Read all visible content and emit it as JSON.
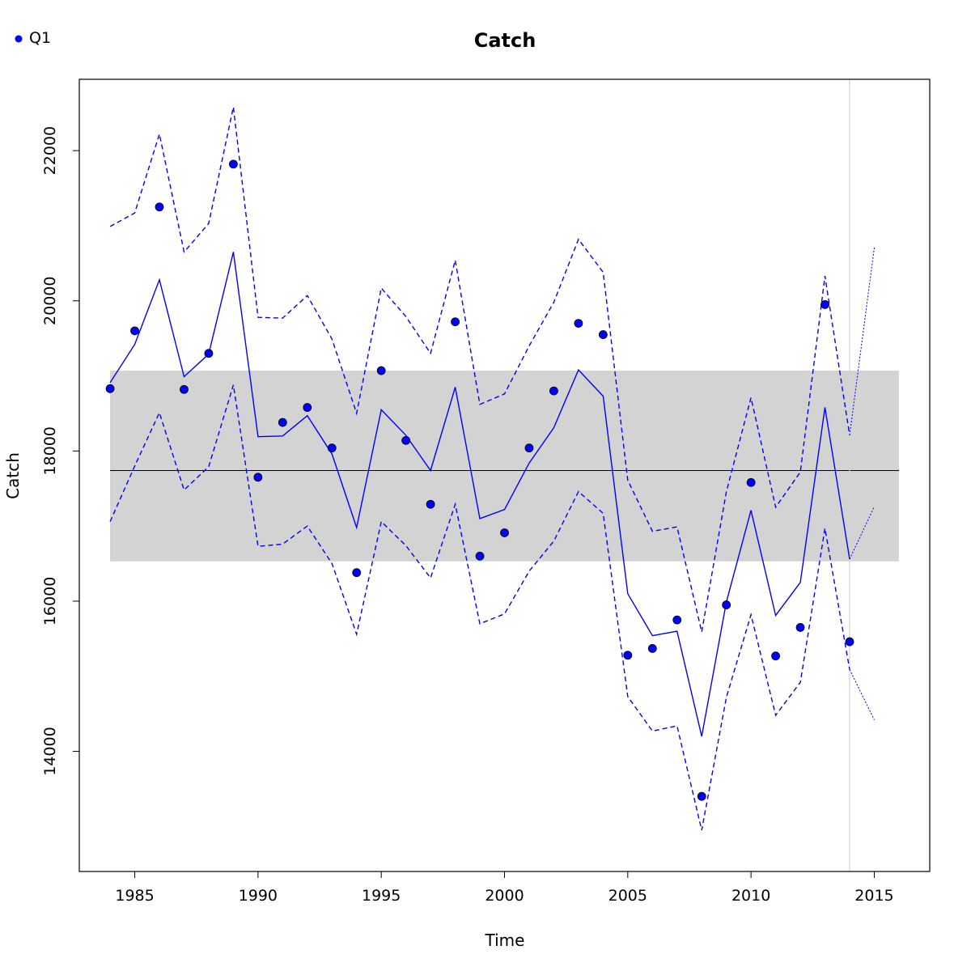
{
  "chart_data": {
    "type": "line",
    "title": "Catch",
    "xlabel": "Time",
    "ylabel": "Catch",
    "xlim": [
      1982.75,
      2017.25
    ],
    "ylim": [
      12400,
      22950
    ],
    "x_ticks": [
      1985,
      1990,
      1995,
      2000,
      2005,
      2010,
      2015
    ],
    "y_ticks": [
      14000,
      16000,
      18000,
      20000,
      22000
    ],
    "legend": {
      "position": "top-left",
      "entries": [
        {
          "label": "Q1",
          "color": "#0000ff",
          "marker": "point"
        }
      ]
    },
    "reference_band": {
      "x_range": [
        1984,
        2016
      ],
      "y_range": [
        16530,
        19070
      ],
      "color": "#d3d3d3"
    },
    "reference_line": {
      "x_range": [
        1984,
        2016
      ],
      "y": 17740,
      "color": "#000000"
    },
    "vertical_marker": {
      "x": 2014,
      "color": "#d3d3d3"
    },
    "colors": {
      "series": "#0000ff",
      "band": "#d3d3d3",
      "reference": "#000000",
      "frame": "#000000"
    },
    "series": [
      {
        "name": "observed",
        "style": "points",
        "x": [
          1984,
          1985,
          1986,
          1987,
          1988,
          1989,
          1990,
          1991,
          1992,
          1993,
          1994,
          1995,
          1996,
          1997,
          1998,
          1999,
          2000,
          2001,
          2002,
          2003,
          2004,
          2005,
          2006,
          2007,
          2008,
          2009,
          2010,
          2011,
          2012,
          2013,
          2014
        ],
        "y": [
          18830,
          19600,
          21250,
          18820,
          19300,
          21820,
          17650,
          18380,
          18580,
          18040,
          16380,
          19070,
          18140,
          17290,
          19720,
          16600,
          16910,
          18040,
          18800,
          19700,
          19550,
          15280,
          15370,
          15750,
          13400,
          15950,
          17580,
          15270,
          15650,
          19950,
          15460
        ]
      },
      {
        "name": "fitted",
        "style": "solid",
        "x": [
          1984,
          1985,
          1986,
          1987,
          1988,
          1989,
          1990,
          1991,
          1992,
          1993,
          1994,
          1995,
          1996,
          1997,
          1998,
          1999,
          2000,
          2001,
          2002,
          2003,
          2004,
          2005,
          2006,
          2007,
          2008,
          2009,
          2010,
          2011,
          2012,
          2013,
          2014
        ],
        "y": [
          18910,
          19420,
          20280,
          18990,
          19290,
          20650,
          18190,
          18200,
          18470,
          17960,
          16980,
          18550,
          18210,
          17740,
          18850,
          17100,
          17220,
          17840,
          18310,
          19080,
          18730,
          16100,
          15540,
          15600,
          14200,
          15990,
          17210,
          15810,
          16250,
          18580,
          16560
        ]
      },
      {
        "name": "upper bound",
        "style": "dashed",
        "x": [
          1984,
          1985,
          1986,
          1987,
          1988,
          1989,
          1990,
          1991,
          1992,
          1993,
          1994,
          1995,
          1996,
          1997,
          1998,
          1999,
          2000,
          2001,
          2002,
          2003,
          2004,
          2005,
          2006,
          2007,
          2008,
          2009,
          2010,
          2011,
          2012,
          2013,
          2014
        ],
        "y": [
          20990,
          21170,
          22220,
          20650,
          21030,
          22580,
          19780,
          19770,
          20070,
          19490,
          18500,
          20170,
          19790,
          19300,
          20540,
          18620,
          18760,
          19400,
          19980,
          20820,
          20380,
          17610,
          16930,
          16990,
          15590,
          17460,
          18710,
          17250,
          17720,
          20330,
          18210
        ]
      },
      {
        "name": "lower bound",
        "style": "dashed",
        "x": [
          1984,
          1985,
          1986,
          1987,
          1988,
          1989,
          1990,
          1991,
          1992,
          1993,
          1994,
          1995,
          1996,
          1997,
          1998,
          1999,
          2000,
          2001,
          2002,
          2003,
          2004,
          2005,
          2006,
          2007,
          2008,
          2009,
          2010,
          2011,
          2012,
          2013,
          2014
        ],
        "y": [
          17060,
          17800,
          18510,
          17480,
          17790,
          18880,
          16730,
          16760,
          17000,
          16500,
          15560,
          17060,
          16740,
          16310,
          17290,
          15700,
          15830,
          16400,
          16800,
          17460,
          17170,
          14730,
          14270,
          14340,
          12950,
          14720,
          15820,
          14480,
          14920,
          16970,
          15090
        ]
      },
      {
        "name": "forecast",
        "style": "dotted",
        "x": [
          2014,
          2015
        ],
        "y": [
          16560,
          17260
        ]
      },
      {
        "name": "forecast upper",
        "style": "dotted",
        "x": [
          2014,
          2015
        ],
        "y": [
          18210,
          20710
        ]
      },
      {
        "name": "forecast lower",
        "style": "dotted",
        "x": [
          2014,
          2015
        ],
        "y": [
          15090,
          14420
        ]
      }
    ]
  }
}
